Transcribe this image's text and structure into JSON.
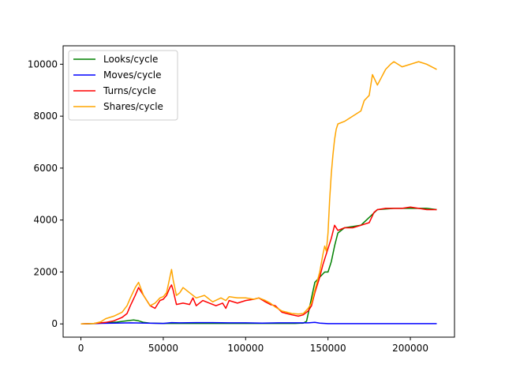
{
  "chart_data": {
    "type": "line",
    "title": "",
    "xlabel": "",
    "ylabel": "",
    "xlim": [
      -10800,
      226800
    ],
    "ylim": [
      -510,
      10710
    ],
    "x_ticks": [
      0,
      50000,
      100000,
      150000,
      200000
    ],
    "x_tick_labels": [
      "0",
      "50000",
      "100000",
      "150000",
      "200000"
    ],
    "y_ticks": [
      0,
      2000,
      4000,
      6000,
      8000,
      10000
    ],
    "y_tick_labels": [
      "0",
      "2000",
      "4000",
      "6000",
      "8000",
      "10000"
    ],
    "grid": false,
    "legend_position": "upper-left",
    "series": [
      {
        "name": "Looks/cycle",
        "color": "#008000",
        "x": [
          0,
          8000,
          15000,
          22000,
          28000,
          32000,
          35000,
          38000,
          42000,
          50000,
          60000,
          80000,
          100000,
          120000,
          130000,
          135000,
          137000,
          138000,
          140000,
          142000,
          145000,
          148000,
          150000,
          152000,
          154000,
          156000,
          160000,
          170000,
          180000,
          190000,
          200000,
          210000,
          216000
        ],
        "y": [
          0,
          10,
          40,
          70,
          120,
          150,
          120,
          60,
          30,
          20,
          20,
          20,
          20,
          20,
          20,
          30,
          100,
          400,
          1000,
          1600,
          1800,
          2000,
          2000,
          2400,
          3000,
          3500,
          3700,
          3800,
          4400,
          4450,
          4450,
          4450,
          4400
        ]
      },
      {
        "name": "Moves/cycle",
        "color": "#0000ff",
        "x": [
          0,
          10000,
          20000,
          30000,
          40000,
          50000,
          55000,
          60000,
          70000,
          80000,
          90000,
          100000,
          110000,
          120000,
          130000,
          138000,
          142000,
          145000,
          150000,
          160000,
          180000,
          200000,
          216000
        ],
        "y": [
          0,
          20,
          30,
          40,
          30,
          20,
          50,
          40,
          50,
          50,
          40,
          40,
          30,
          40,
          40,
          40,
          60,
          30,
          10,
          10,
          10,
          10,
          10
        ]
      },
      {
        "name": "Turns/cycle",
        "color": "#ff0000",
        "x": [
          0,
          8000,
          15000,
          20000,
          25000,
          28000,
          30000,
          33000,
          35000,
          38000,
          42000,
          45000,
          48000,
          50000,
          52000,
          54000,
          55000,
          56000,
          58000,
          62000,
          66000,
          68000,
          70000,
          74000,
          78000,
          82000,
          86000,
          88000,
          90000,
          95000,
          100000,
          105000,
          108000,
          112000,
          115000,
          118000,
          122000,
          125000,
          128000,
          132000,
          135000,
          138000,
          140000,
          142000,
          145000,
          147000,
          148000,
          150000,
          152000,
          154000,
          156000,
          160000,
          165000,
          170000,
          175000,
          178000,
          180000,
          185000,
          190000,
          195000,
          200000,
          205000,
          210000,
          216000
        ],
        "y": [
          0,
          20,
          60,
          120,
          250,
          400,
          700,
          1100,
          1400,
          1100,
          700,
          600,
          900,
          950,
          1100,
          1400,
          1500,
          1300,
          750,
          800,
          750,
          1000,
          700,
          900,
          800,
          700,
          800,
          600,
          900,
          800,
          900,
          950,
          1000,
          850,
          750,
          700,
          450,
          400,
          350,
          300,
          350,
          500,
          700,
          1200,
          1800,
          2300,
          2500,
          2900,
          3300,
          3800,
          3600,
          3700,
          3700,
          3800,
          3900,
          4300,
          4400,
          4450,
          4450,
          4450,
          4500,
          4450,
          4400,
          4400
        ]
      },
      {
        "name": "Shares/cycle",
        "color": "#ffa500",
        "x": [
          0,
          8000,
          12000,
          15000,
          20000,
          25000,
          28000,
          30000,
          33000,
          35000,
          38000,
          42000,
          45000,
          48000,
          50000,
          52000,
          54000,
          55000,
          56000,
          58000,
          60000,
          62000,
          66000,
          70000,
          75000,
          80000,
          85000,
          88000,
          90000,
          95000,
          100000,
          105000,
          108000,
          112000,
          115000,
          118000,
          122000,
          125000,
          128000,
          132000,
          135000,
          138000,
          140000,
          142000,
          145000,
          147000,
          148000,
          149000,
          150000,
          151000,
          152000,
          153000,
          154000,
          155000,
          156000,
          160000,
          165000,
          170000,
          172000,
          175000,
          177000,
          180000,
          185000,
          188000,
          190000,
          195000,
          200000,
          205000,
          210000,
          216000
        ],
        "y": [
          0,
          20,
          80,
          200,
          300,
          450,
          700,
          1000,
          1400,
          1600,
          1100,
          700,
          800,
          1000,
          1050,
          1200,
          1800,
          2100,
          1700,
          1100,
          1200,
          1400,
          1200,
          1000,
          1100,
          850,
          1000,
          900,
          1050,
          1000,
          1000,
          950,
          1000,
          900,
          800,
          650,
          500,
          450,
          400,
          380,
          400,
          600,
          800,
          1300,
          2000,
          2700,
          3000,
          2800,
          3500,
          4800,
          5800,
          6500,
          7100,
          7500,
          7700,
          7800,
          8000,
          8200,
          8600,
          8800,
          9600,
          9200,
          9800,
          10000,
          10100,
          9900,
          10000,
          10100,
          10000,
          9800
        ]
      }
    ]
  }
}
